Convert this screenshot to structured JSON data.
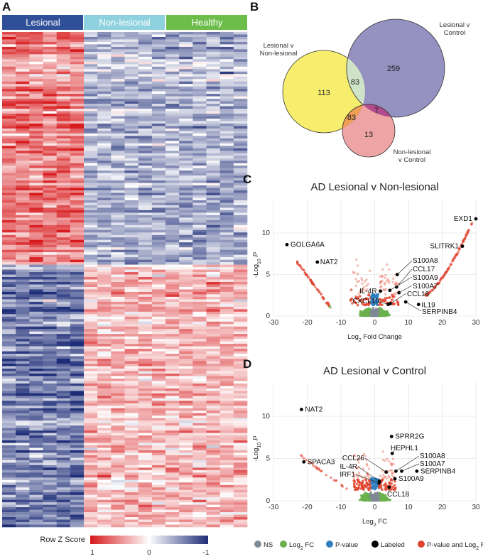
{
  "chart_data": [
    {
      "type": "heatmap",
      "panel": "A",
      "groups": [
        {
          "label": "Lesional",
          "color": "#2f4f98"
        },
        {
          "label": "Non-lesional",
          "color": "#8dd2de"
        },
        {
          "label": "Healthy",
          "color": "#6dbd4b"
        }
      ],
      "colorbar": {
        "title": "Row Z Score",
        "ticks": [
          "1",
          "0",
          "-1"
        ],
        "low_color": "#d7191c",
        "mid_color": "#ffffff",
        "high_color": "#1e2d78"
      }
    },
    {
      "type": "venn",
      "panel": "B",
      "sets": [
        {
          "label_line1": "Lesional v",
          "label_line2": "Non-lesional",
          "only": "113",
          "color": "#f7ee6e"
        },
        {
          "label_line1": "Lesional v",
          "label_line2": "Control",
          "only": "259",
          "color": "#8c88bb"
        },
        {
          "label_line1": "Non-lesional",
          "label_line2": "v Control",
          "only": "13",
          "color": "#ec9a9a"
        }
      ],
      "intersections": {
        "ln_lc": "83",
        "ln_nc": "83",
        "lc_nc": "7"
      }
    },
    {
      "type": "scatter",
      "panel": "C",
      "title": "AD Lesional v Non-lesional",
      "xlabel_main": "Log",
      "xlabel_sub": "2",
      "xlabel_rest": " Fold Change",
      "ylabel_main": "-Log",
      "ylabel_sub": "10",
      "ylabel_rest": " P",
      "xlim": [
        -30,
        30
      ],
      "ylim": [
        0,
        14
      ],
      "xticks": [
        "-30",
        "-20",
        "-10",
        "0",
        "10",
        "20",
        "30"
      ],
      "yticks": [
        "0",
        "5",
        "10"
      ],
      "labeled": [
        {
          "gene": "EXD1",
          "x": 30,
          "y": 11.7
        },
        {
          "gene": "SLITRK1",
          "x": 26,
          "y": 8.4
        },
        {
          "gene": "GOLGA6A",
          "x": -26,
          "y": 8.6
        },
        {
          "gene": "NAT2",
          "x": -17,
          "y": 6.5
        },
        {
          "gene": "S100A8",
          "x": 6.7,
          "y": 5.0
        },
        {
          "gene": "CCL17",
          "x": 6.5,
          "y": 3.5
        },
        {
          "gene": "S100A9",
          "x": 4.5,
          "y": 3.1
        },
        {
          "gene": "S100A7",
          "x": 7.2,
          "y": 2.8
        },
        {
          "gene": "IL-4R",
          "x": 1.7,
          "y": 3.0
        },
        {
          "gene": "CCL18",
          "x": 4.6,
          "y": 1.5
        },
        {
          "gene": "CXCL10",
          "x": 4.0,
          "y": 1.4
        },
        {
          "gene": "IL19",
          "x": 13,
          "y": 1.4
        },
        {
          "gene": "SERPINB4",
          "x": 9.2,
          "y": 1.7
        }
      ]
    },
    {
      "type": "scatter",
      "panel": "D",
      "title": "AD Lesional v Control",
      "xlabel_main": "Log",
      "xlabel_sub": "2",
      "xlabel_rest": " FC",
      "ylabel_main": "-Log",
      "ylabel_sub": "10",
      "ylabel_rest": " P",
      "xlim": [
        -30,
        30
      ],
      "ylim": [
        0,
        14
      ],
      "xticks": [
        "-30",
        "-20",
        "-10",
        "0",
        "10",
        "20",
        "30"
      ],
      "yticks": [
        "0",
        "5",
        "10"
      ],
      "labeled": [
        {
          "gene": "NAT2",
          "x": -21.7,
          "y": 10.8
        },
        {
          "gene": "SPACA3",
          "x": -21,
          "y": 4.6
        },
        {
          "gene": "SPRR2G",
          "x": 5,
          "y": 7.6
        },
        {
          "gene": "HEPHL1",
          "x": 5.2,
          "y": 5.6
        },
        {
          "gene": "S100A8",
          "x": 6.3,
          "y": 3.5
        },
        {
          "gene": "S100A7",
          "x": 8,
          "y": 3.5
        },
        {
          "gene": "SERPINB4",
          "x": 12.5,
          "y": 3.5
        },
        {
          "gene": "S100A9",
          "x": 6,
          "y": 2.6
        },
        {
          "gene": "CCL26",
          "x": 3.4,
          "y": 3.4
        },
        {
          "gene": "IL-4R",
          "x": 1.4,
          "y": 2.3
        },
        {
          "gene": "IRF1",
          "x": 1.3,
          "y": 2.1
        },
        {
          "gene": "CCL18",
          "x": 4.3,
          "y": 1.6
        }
      ],
      "legend": [
        {
          "label": "NS",
          "color": "#7f8a96"
        },
        {
          "label": "Log",
          "sub": "2",
          "rest": " FC",
          "color": "#6ab04c"
        },
        {
          "label": "P-value",
          "color": "#2f7fc0"
        },
        {
          "label": "Labeled",
          "color": "#000000"
        },
        {
          "label": "P-value and Log",
          "sub": "2",
          "rest": " FC",
          "color": "#e0452f"
        }
      ]
    }
  ]
}
